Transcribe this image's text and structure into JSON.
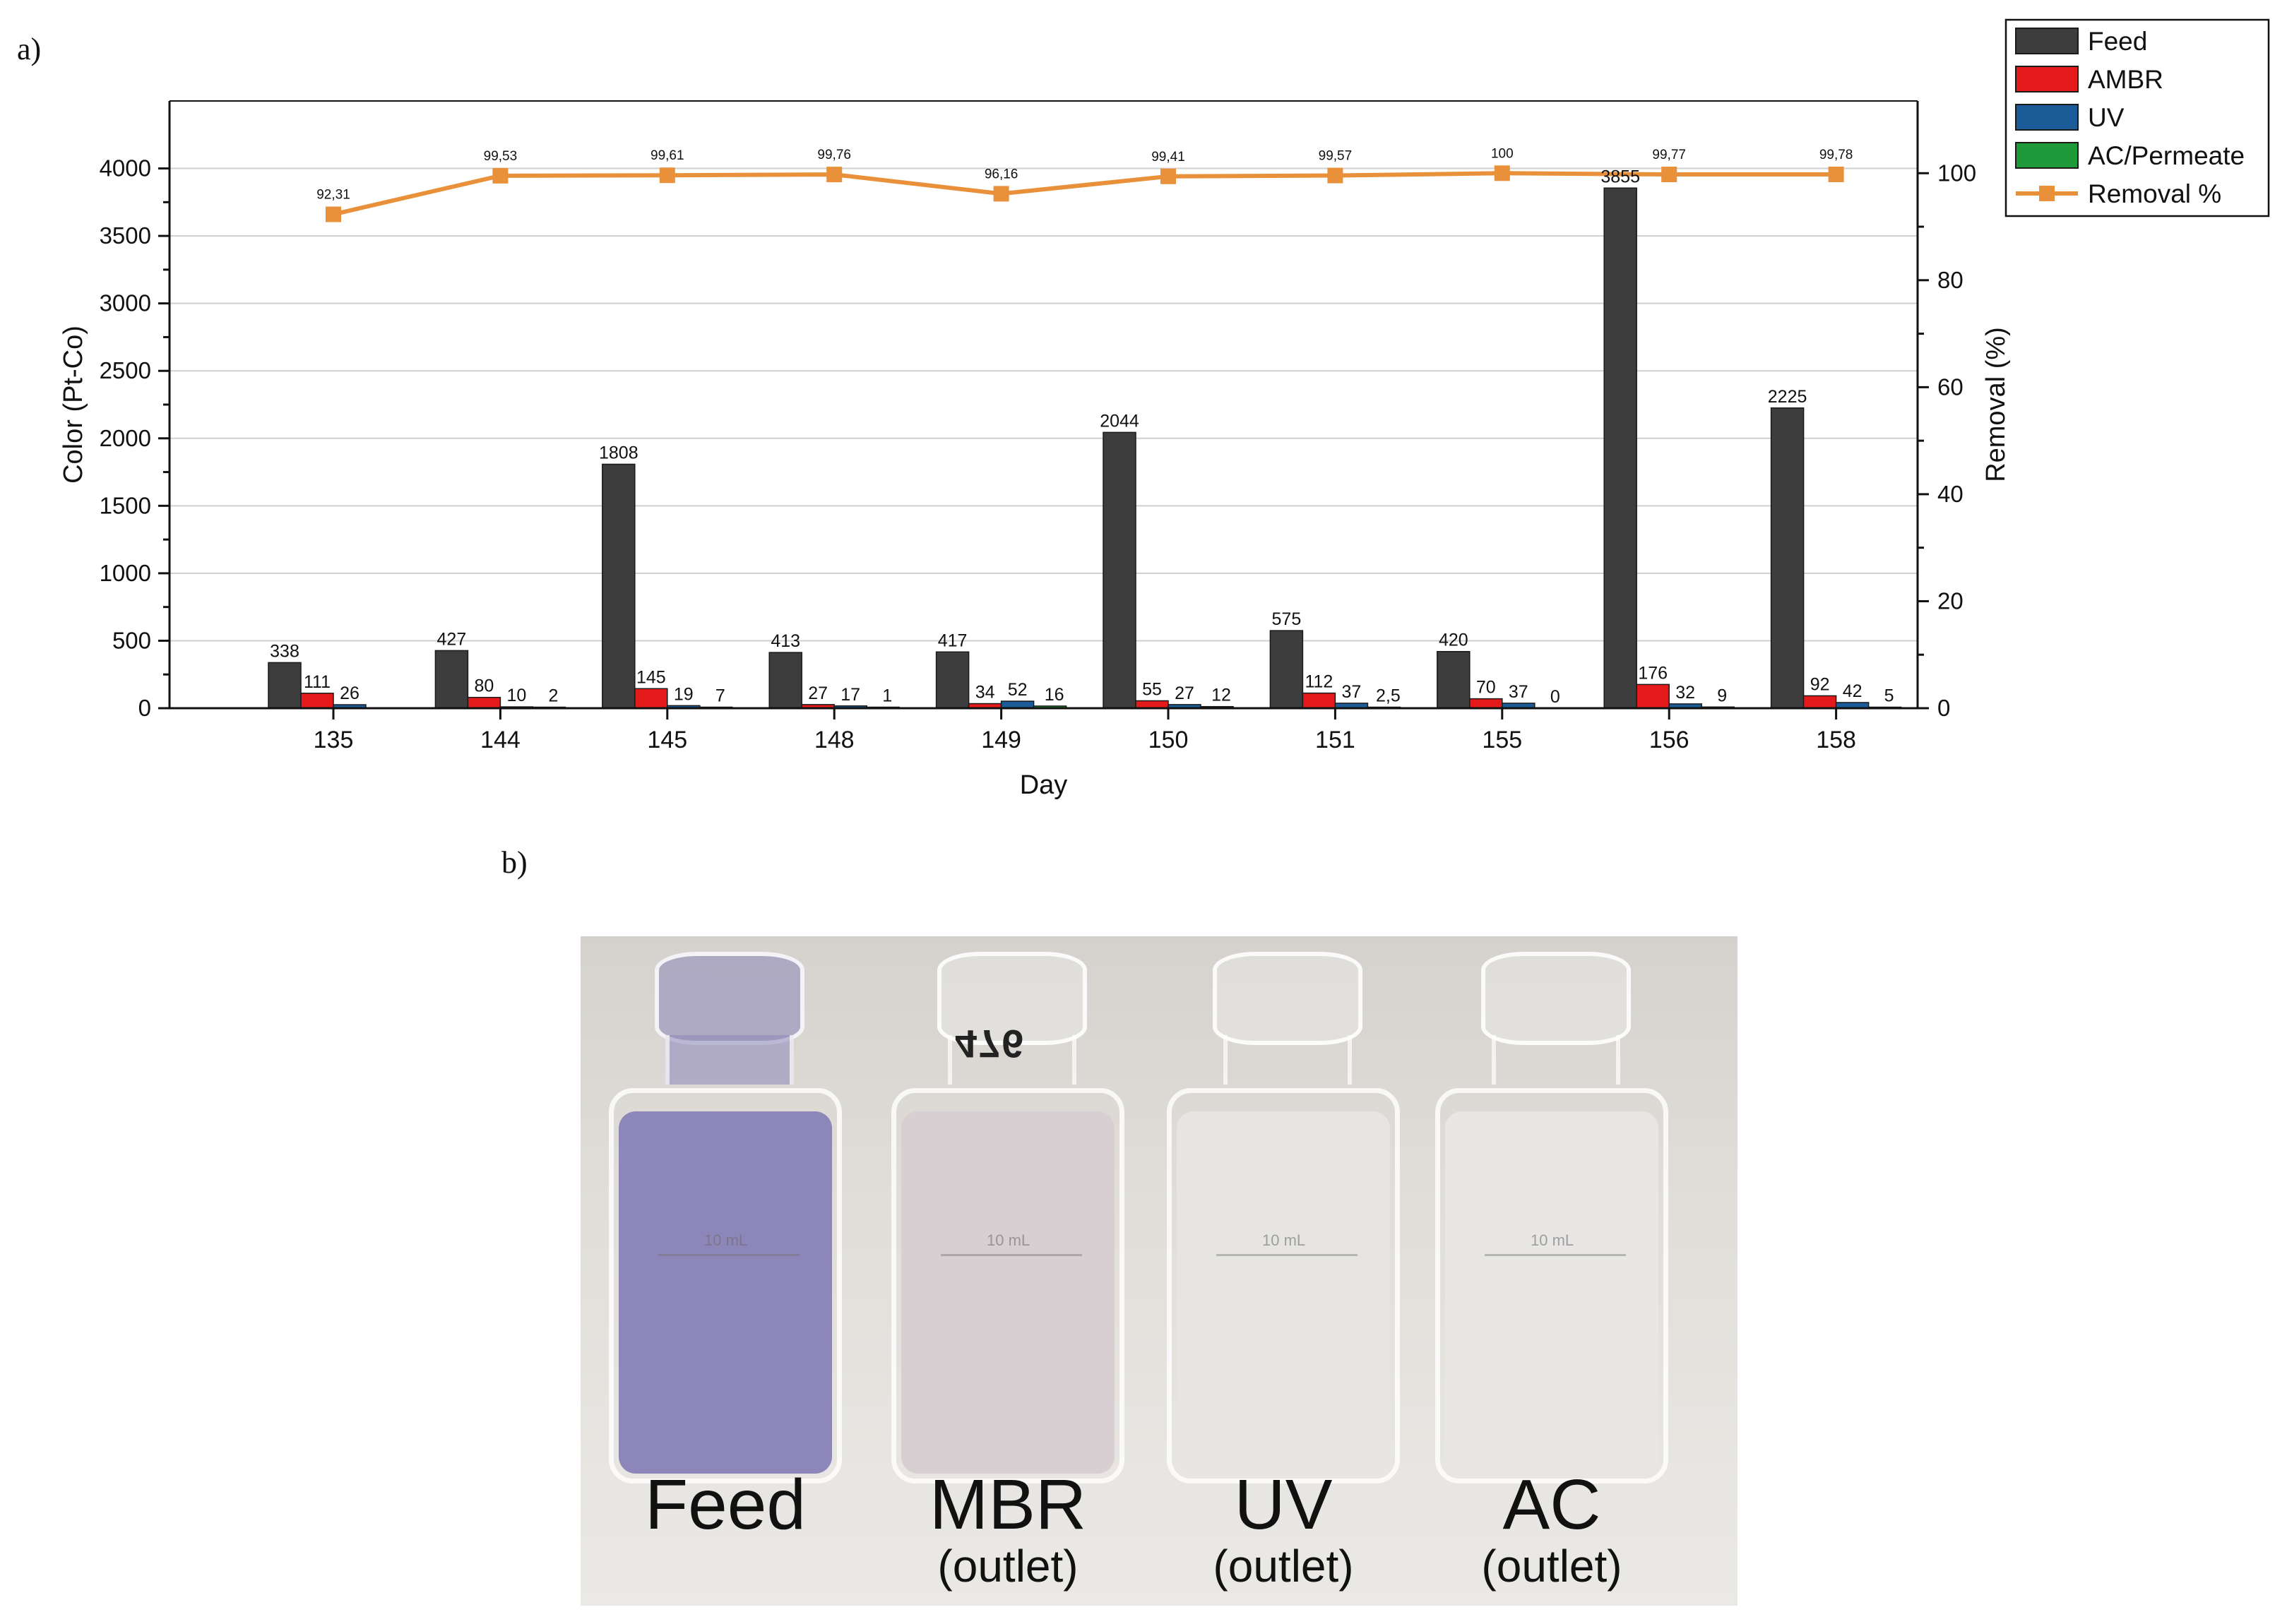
{
  "panels": {
    "a_label": "a)",
    "b_label": "b)"
  },
  "chart_data": {
    "type": "bar",
    "categories": [
      "135",
      "144",
      "145",
      "148",
      "149",
      "150",
      "151",
      "155",
      "156",
      "158"
    ],
    "xlabel": "Day",
    "ylabel": "Color (Pt-Co)",
    "y2label": "Removal (%)",
    "ylim": [
      0,
      4500
    ],
    "y2lim": [
      0,
      113.5
    ],
    "yticks": [
      0,
      500,
      1000,
      1500,
      2000,
      2500,
      3000,
      3500,
      4000
    ],
    "y2ticks": [
      0,
      20,
      40,
      60,
      80,
      100
    ],
    "grid": true,
    "legend_position": "top-right",
    "series": [
      {
        "name": "Feed",
        "color": "#3d3d3d",
        "values": [
          338,
          427,
          1808,
          413,
          417,
          2044,
          575,
          420,
          3855,
          2225
        ],
        "labels": [
          "338",
          "427",
          "1808",
          "413",
          "417",
          "2044",
          "575",
          "420",
          "3855",
          "2225"
        ]
      },
      {
        "name": "AMBR",
        "color": "#e51b1b",
        "values": [
          111,
          80,
          145,
          27,
          34,
          55,
          112,
          70,
          176,
          92
        ],
        "labels": [
          "111",
          "80",
          "145",
          "27",
          "34",
          "55",
          "112",
          "70",
          "176",
          "92"
        ]
      },
      {
        "name": "UV",
        "color": "#1b5c98",
        "values": [
          26,
          10,
          19,
          17,
          52,
          27,
          37,
          37,
          32,
          42
        ],
        "labels": [
          "26",
          "10",
          "19",
          "17",
          "52",
          "27",
          "37",
          "37",
          "32",
          "42"
        ]
      },
      {
        "name": "AC/Permeate",
        "color": "#1f9a3a",
        "values": [
          null,
          2,
          7,
          1,
          16,
          12,
          2.5,
          0,
          9,
          5
        ],
        "labels": [
          "",
          "2",
          "7",
          "1",
          "16",
          "12",
          "2,5",
          "0",
          "9",
          "5"
        ]
      }
    ],
    "line_series": {
      "name": "Removal %",
      "color": "#e8913a",
      "axis": "right",
      "values": [
        92.31,
        99.53,
        99.61,
        99.76,
        96.16,
        99.41,
        99.57,
        100,
        99.77,
        99.78
      ],
      "labels": [
        "92,31",
        "99,53",
        "99,61",
        "99,76",
        "96,16",
        "99,41",
        "99,57",
        "100",
        "99,77",
        "99,78"
      ]
    }
  },
  "photo": {
    "vials": [
      {
        "title": "Feed",
        "subtitle": "",
        "liquid_color": "#8d86b8",
        "label": ""
      },
      {
        "title": "MBR",
        "subtitle": "(outlet)",
        "liquid_color": "#d8cfd2",
        "label": "476"
      },
      {
        "title": "UV",
        "subtitle": "(outlet)",
        "liquid_color": "#e6e5e3",
        "label": ""
      },
      {
        "title": "AC",
        "subtitle": "(outlet)",
        "liquid_color": "#e8e7e5",
        "label": ""
      }
    ],
    "graduation_label": "10 mL"
  }
}
